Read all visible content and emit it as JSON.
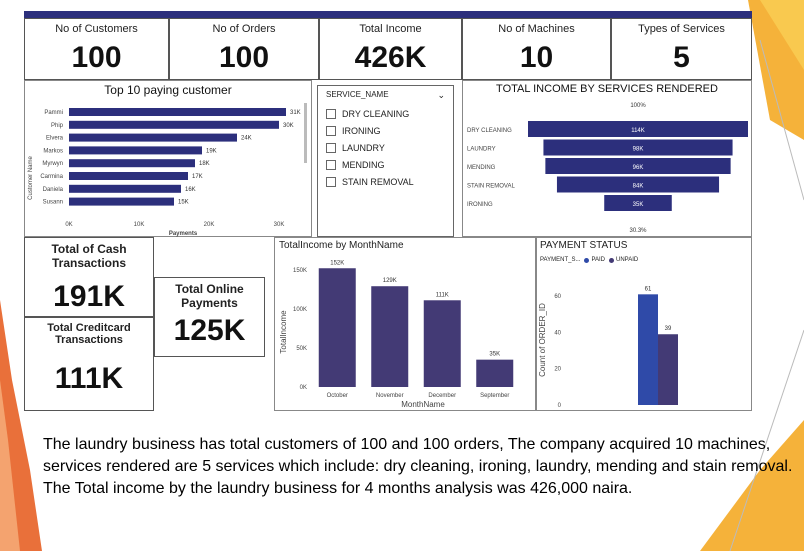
{
  "kpis": {
    "customers": {
      "label": "No of Customers",
      "value": "100"
    },
    "orders": {
      "label": "No of Orders",
      "value": "100"
    },
    "income": {
      "label": "Total Income",
      "value": "426K"
    },
    "machines": {
      "label": "No of Machines",
      "value": "10"
    },
    "services": {
      "label": "Types of Services",
      "value": "5"
    }
  },
  "top_customers": {
    "title": "Top 10 paying customer",
    "ylabel": "Customer Name",
    "xlabel": "Payments",
    "xticks": [
      "0K",
      "10K",
      "20K",
      "30K"
    ],
    "chart_data": {
      "type": "bar",
      "orientation": "horizontal",
      "categories": [
        "Pammi",
        "Phip",
        "Elvera",
        "Markos",
        "Myrwyn",
        "Carmina",
        "Daniela",
        "Susann"
      ],
      "values": [
        31,
        30,
        24,
        19,
        18,
        17,
        16,
        15
      ],
      "labels": [
        "31K",
        "30K",
        "24K",
        "19K",
        "18K",
        "17K",
        "16K",
        "15K"
      ],
      "xlim": [
        0,
        30
      ],
      "color": "#2c2f7c"
    }
  },
  "slicer": {
    "title": "SERVICE_NAME",
    "items": [
      "DRY CLEANING",
      "IRONING",
      "LAUNDRY",
      "MENDING",
      "STAIN REMOVAL"
    ]
  },
  "funnel": {
    "title": "TOTAL INCOME BY SERVICES RENDERED",
    "top_pct": "100%",
    "bottom_pct": "30.3%",
    "chart_data": {
      "type": "bar",
      "subtype": "funnel",
      "categories": [
        "DRY CLEANING",
        "LAUNDRY",
        "MENDING",
        "STAIN REMOVAL",
        "IRONING"
      ],
      "values": [
        114,
        98,
        96,
        84,
        35
      ],
      "labels": [
        "114K",
        "98K",
        "96K",
        "84K",
        "35K"
      ],
      "color": "#2c2f7c"
    }
  },
  "cash": {
    "label": "Total of Cash Transactions",
    "value": "191K"
  },
  "online": {
    "label": "Total Online Payments",
    "value": "125K"
  },
  "credit": {
    "label": "Total Creditcard Transactions",
    "value": "111K"
  },
  "monthly": {
    "title": "TotalIncome by MonthName",
    "ylabel": "TotalIncome",
    "xlabel": "MonthName",
    "yticks": [
      "150K",
      "100K",
      "50K",
      "0K"
    ],
    "chart_data": {
      "type": "bar",
      "categories": [
        "October",
        "November",
        "December",
        "September"
      ],
      "values": [
        152,
        129,
        111,
        35
      ],
      "labels": [
        "152K",
        "129K",
        "111K",
        "35K"
      ],
      "ylim": [
        0,
        160
      ],
      "color": "#433a75"
    }
  },
  "payment": {
    "title": "PAYMENT STATUS",
    "legend_title": "PAYMENT_S...",
    "ylabel": "Count of ORDER_ID",
    "yticks": [
      "60",
      "40",
      "20",
      "0"
    ],
    "chart_data": {
      "type": "bar",
      "series": [
        {
          "name": "PAID",
          "values": [
            61
          ],
          "label": "61",
          "color": "#2f4aa8"
        },
        {
          "name": "UNPAID",
          "values": [
            39
          ],
          "label": "39",
          "color": "#433a75"
        }
      ],
      "ylim": [
        0,
        70
      ]
    }
  },
  "summary": "The laundry business has total customers of 100 and 100 orders, The company acquired 10 machines, services rendered are 5 services which include: dry cleaning, ironing, laundry, mending and stain removal. The Total income by the laundry business for 4 months analysis was 426,000 naira."
}
